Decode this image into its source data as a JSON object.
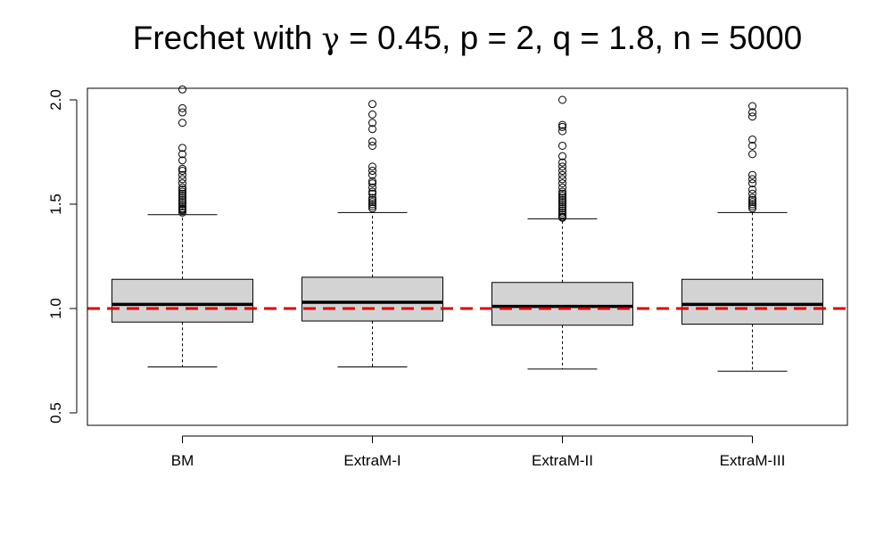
{
  "chart_data": {
    "type": "boxplot",
    "title": {
      "prefix": "Frechet with ",
      "symbol": "γ",
      "suffix": " = 0.45, p = 2, q = 1.8, n = 5000"
    },
    "xlabel": "",
    "ylabel": "",
    "ylim": [
      0.47,
      2.05
    ],
    "yticks": [
      "0.5",
      "1.0",
      "1.5",
      "2.0"
    ],
    "ytick_values": [
      0.5,
      1.0,
      1.5,
      2.0
    ],
    "reference_line": {
      "y": 1.0,
      "color": "#e00000",
      "style": "dashed"
    },
    "box_fill": "#d3d3d3",
    "grid": false,
    "categories": [
      "BM",
      "ExtraM-I",
      "ExtraM-II",
      "ExtraM-III"
    ],
    "boxes": [
      {
        "label": "BM",
        "whisker_low": 0.72,
        "q1": 0.935,
        "median": 1.02,
        "q3": 1.14,
        "whisker_high": 1.45,
        "outliers": [
          1.46,
          1.47,
          1.475,
          1.48,
          1.49,
          1.5,
          1.51,
          1.52,
          1.53,
          1.54,
          1.55,
          1.56,
          1.57,
          1.58,
          1.6,
          1.62,
          1.64,
          1.66,
          1.67,
          1.71,
          1.74,
          1.77,
          1.89,
          1.94,
          1.96,
          2.05
        ]
      },
      {
        "label": "ExtraM-I",
        "whisker_low": 0.72,
        "q1": 0.94,
        "median": 1.03,
        "q3": 1.15,
        "whisker_high": 1.46,
        "outliers": [
          1.48,
          1.49,
          1.5,
          1.51,
          1.52,
          1.53,
          1.55,
          1.56,
          1.58,
          1.6,
          1.61,
          1.64,
          1.66,
          1.68,
          1.78,
          1.8,
          1.86,
          1.89,
          1.93,
          1.98
        ]
      },
      {
        "label": "ExtraM-II",
        "whisker_low": 0.71,
        "q1": 0.92,
        "median": 1.01,
        "q3": 1.125,
        "whisker_high": 1.43,
        "outliers": [
          1.435,
          1.44,
          1.45,
          1.46,
          1.47,
          1.48,
          1.49,
          1.5,
          1.51,
          1.52,
          1.53,
          1.54,
          1.55,
          1.56,
          1.58,
          1.6,
          1.62,
          1.64,
          1.66,
          1.68,
          1.7,
          1.73,
          1.78,
          1.85,
          1.87,
          1.88,
          2.0
        ]
      },
      {
        "label": "ExtraM-III",
        "whisker_low": 0.7,
        "q1": 0.925,
        "median": 1.02,
        "q3": 1.14,
        "whisker_high": 1.46,
        "outliers": [
          1.48,
          1.49,
          1.5,
          1.51,
          1.52,
          1.53,
          1.55,
          1.57,
          1.6,
          1.62,
          1.64,
          1.74,
          1.78,
          1.81,
          1.92,
          1.94,
          1.97
        ]
      }
    ]
  }
}
